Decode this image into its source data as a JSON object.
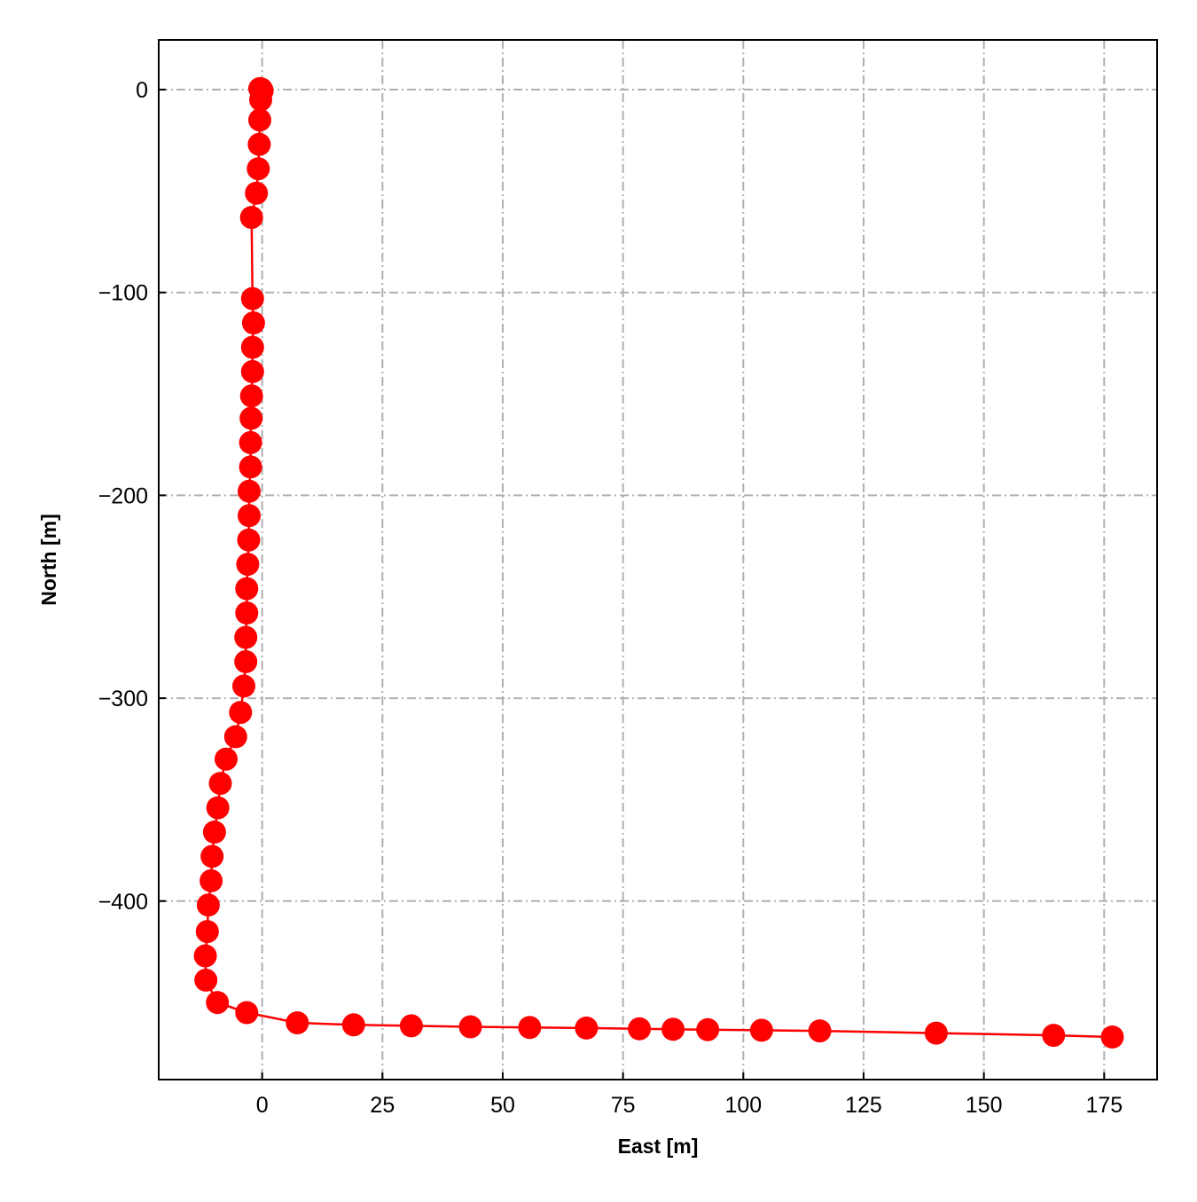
{
  "chart_data": {
    "type": "line",
    "title": "",
    "xlabel": "East [m]",
    "ylabel": "North [m]",
    "xlim": [
      -21.5,
      186
    ],
    "ylim": [
      -488,
      24.5
    ],
    "xticks": [
      0,
      25,
      50,
      75,
      100,
      125,
      150,
      175
    ],
    "yticks": [
      0,
      -100,
      -200,
      -300,
      -400
    ],
    "grid": true,
    "grid_style": "dash-dot",
    "legend": "none",
    "series": [
      {
        "marker": "circle",
        "x": [
          -0.5,
          -0.2,
          0.0,
          -0.3,
          -0.5,
          -0.6,
          -0.8,
          -1.2,
          -2.2,
          -2.0,
          -1.8,
          -2.0,
          -2.0,
          -2.2,
          -2.3,
          -2.4,
          -2.4,
          -2.7,
          -2.7,
          -2.8,
          -3.0,
          -3.2,
          -3.2,
          -3.4,
          -3.4,
          -3.8,
          -4.5,
          -5.5,
          -7.5,
          -8.7,
          -9.2,
          -9.9,
          -10.4,
          -10.6,
          -11.2,
          -11.4,
          -11.8,
          -11.7,
          -9.3,
          -3.2,
          7.3,
          19.0,
          31.0,
          43.3,
          55.6,
          67.4,
          78.4,
          85.4,
          92.6,
          103.8,
          115.9,
          140.1,
          164.5,
          176.7
        ],
        "y": [
          0.5,
          0.3,
          -0.5,
          -5,
          -15,
          -27,
          -39,
          -51,
          -63,
          -103,
          -115,
          -127,
          -139,
          -151,
          -162,
          -174,
          -186,
          -198,
          -210,
          -222,
          -234,
          -246,
          -258,
          -270,
          -282,
          -294,
          -307,
          -319,
          -330,
          -342,
          -354,
          -366,
          -378,
          -390,
          -402,
          -415,
          -427,
          -439,
          -450,
          -455,
          -460,
          -461,
          -461.5,
          -462,
          -462.3,
          -462.6,
          -463,
          -463.2,
          -463.4,
          -463.7,
          -464,
          -465.1,
          -466.2,
          -467
        ]
      }
    ],
    "colors": {
      "series": "#ff0000",
      "grid": "#b0b0b0",
      "axes": "#000000"
    }
  }
}
